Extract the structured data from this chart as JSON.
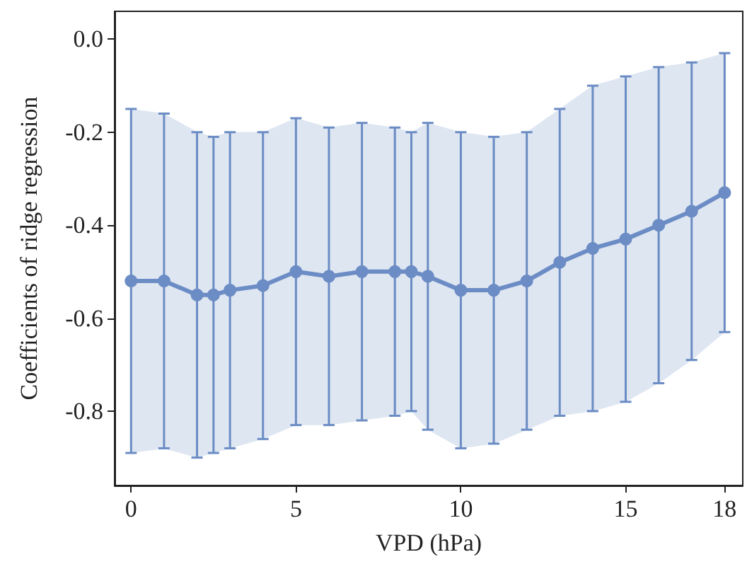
{
  "chart_data": {
    "type": "line",
    "xlabel": "VPD (hPa)",
    "ylabel": "Coefficients of ridge regression",
    "x": [
      0,
      1,
      2,
      2.5,
      3,
      4,
      5,
      6,
      7,
      8,
      8.5,
      9,
      10,
      11,
      12,
      13,
      14,
      15,
      16,
      17,
      18
    ],
    "series": [
      {
        "color": "#6b8cc4",
        "values": [
          -0.52,
          -0.52,
          -0.55,
          -0.55,
          -0.54,
          -0.53,
          -0.5,
          -0.51,
          -0.5,
          -0.5,
          -0.5,
          -0.51,
          -0.54,
          -0.54,
          -0.52,
          -0.48,
          -0.45,
          -0.43,
          -0.4,
          -0.37,
          -0.33
        ],
        "lower": [
          -0.89,
          -0.88,
          -0.9,
          -0.89,
          -0.88,
          -0.86,
          -0.83,
          -0.83,
          -0.82,
          -0.81,
          -0.8,
          -0.84,
          -0.88,
          -0.87,
          -0.84,
          -0.81,
          -0.8,
          -0.78,
          -0.74,
          -0.69,
          -0.63
        ],
        "upper": [
          -0.15,
          -0.16,
          -0.2,
          -0.21,
          -0.2,
          -0.2,
          -0.17,
          -0.19,
          -0.18,
          -0.19,
          -0.2,
          -0.18,
          -0.2,
          -0.21,
          -0.2,
          -0.15,
          -0.1,
          -0.08,
          -0.06,
          -0.05,
          -0.03
        ],
        "errors": [
          [
            -0.89,
            -0.15
          ],
          [
            -0.88,
            -0.16
          ],
          [
            -0.9,
            -0.2
          ],
          [
            -0.89,
            -0.21
          ],
          [
            -0.88,
            -0.2
          ],
          [
            -0.86,
            -0.2
          ],
          [
            -0.83,
            -0.17
          ],
          [
            -0.83,
            -0.19
          ],
          [
            -0.82,
            -0.18
          ],
          [
            -0.81,
            -0.19
          ],
          [
            -0.8,
            -0.2
          ],
          [
            -0.84,
            -0.18
          ],
          [
            -0.88,
            -0.2
          ],
          [
            -0.87,
            -0.21
          ],
          [
            -0.84,
            -0.2
          ],
          [
            -0.81,
            -0.15
          ],
          [
            -0.8,
            -0.1
          ],
          [
            -0.78,
            -0.08
          ],
          [
            -0.74,
            -0.06
          ],
          [
            -0.69,
            -0.05
          ],
          [
            -0.63,
            -0.03
          ]
        ]
      }
    ],
    "xlim": [
      -0.5,
      18.55
    ],
    "xticks": [
      0,
      5,
      10,
      15,
      18
    ],
    "ylim": [
      -0.96,
      0.06
    ],
    "yticks": [
      {
        "value": 0,
        "label": "0.0"
      },
      -0.2,
      -0.4,
      -0.6,
      -0.8
    ],
    "marker": "circle",
    "line_style": "solid"
  }
}
